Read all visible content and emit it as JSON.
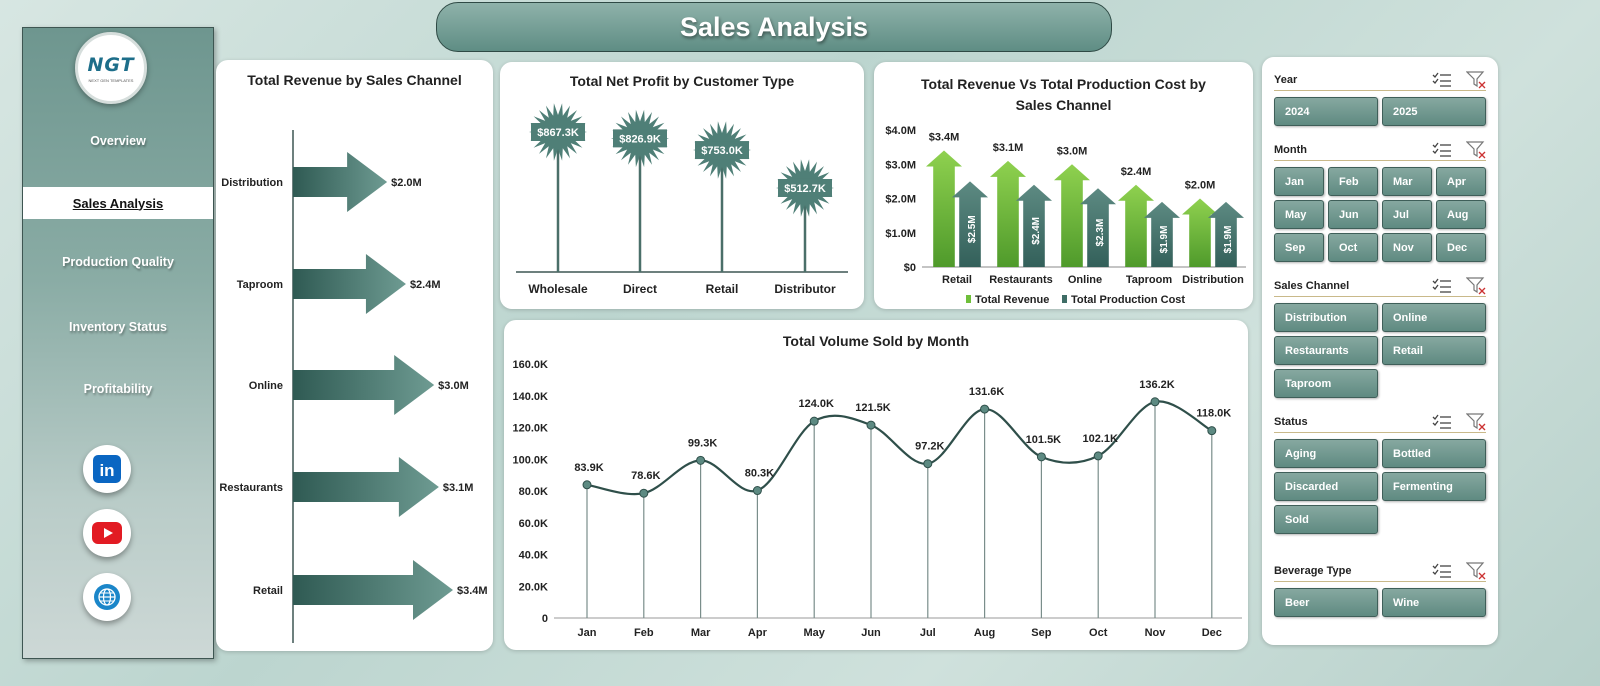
{
  "title": "Sales Analysis",
  "logo": {
    "mark": "NGT",
    "sub": "NEXT GEN TEMPLATES"
  },
  "nav": [
    {
      "label": "Overview"
    },
    {
      "label": "Sales Analysis"
    },
    {
      "label": "Production Quality"
    },
    {
      "label": "Inventory Status"
    },
    {
      "label": "Profitability"
    }
  ],
  "social": [
    {
      "icon": "linkedin-icon",
      "label": "in",
      "color": "#0a66c2"
    },
    {
      "icon": "youtube-icon",
      "label": "▶",
      "color": "#e21b23"
    },
    {
      "icon": "globe-icon",
      "label": "",
      "color": "#1b86c9"
    }
  ],
  "colors": {
    "accent": "#4f7f77",
    "accent_dark": "#3e6a62",
    "revenue_green": "#6fbf3a",
    "cost_teal": "#3f6d66"
  },
  "chart_data": [
    {
      "type": "bar",
      "title": "Total Revenue by Sales Channel",
      "categories": [
        "Distribution",
        "Taproom",
        "Online",
        "Restaurants",
        "Retail"
      ],
      "values": [
        2.0,
        2.4,
        3.0,
        3.1,
        3.4
      ],
      "labels": [
        "$2.0M",
        "$2.4M",
        "$3.0M",
        "$3.1M",
        "$3.4M"
      ],
      "orientation": "horizontal",
      "unit": "$M"
    },
    {
      "type": "bar",
      "title": "Total Net Profit by Customer Type",
      "categories": [
        "Wholesale",
        "Direct",
        "Retail",
        "Distributor"
      ],
      "values": [
        867.3,
        826.9,
        753.0,
        512.7
      ],
      "labels": [
        "$867.3K",
        "$826.9K",
        "$753.0K",
        "$512.7K"
      ],
      "unit": "$K"
    },
    {
      "type": "bar",
      "title": "Total Revenue Vs Total Production Cost by Sales Channel",
      "categories": [
        "Retail",
        "Restaurants",
        "Online",
        "Taproom",
        "Distribution"
      ],
      "series": [
        {
          "name": "Total Revenue",
          "values": [
            3.4,
            3.1,
            3.0,
            2.4,
            2.0
          ],
          "labels": [
            "$3.4M",
            "$3.1M",
            "$3.0M",
            "$2.4M",
            "$2.0M"
          ]
        },
        {
          "name": "Total Production Cost",
          "values": [
            2.5,
            2.4,
            2.3,
            1.9,
            1.9
          ],
          "labels": [
            "$2.5M",
            "$2.4M",
            "$2.3M",
            "$1.9M",
            "$1.9M"
          ]
        }
      ],
      "yticks": [
        "$0",
        "$1.0M",
        "$2.0M",
        "$3.0M",
        "$4.0M"
      ],
      "ylim": [
        0,
        4.0
      ],
      "legend": "bottom"
    },
    {
      "type": "line",
      "title": "Total Volume Sold by Month",
      "x": [
        "Jan",
        "Feb",
        "Mar",
        "Apr",
        "May",
        "Jun",
        "Jul",
        "Aug",
        "Sep",
        "Oct",
        "Nov",
        "Dec"
      ],
      "values": [
        83.9,
        78.6,
        99.3,
        80.3,
        124.0,
        121.5,
        97.2,
        131.6,
        101.5,
        102.1,
        136.2,
        118.0
      ],
      "labels": [
        "83.9K",
        "78.6K",
        "99.3K",
        "80.3K",
        "124.0K",
        "121.5K",
        "97.2K",
        "131.6K",
        "101.5K",
        "102.1K",
        "136.2K",
        "118.0K"
      ],
      "yticks": [
        "0",
        "20.0K",
        "40.0K",
        "60.0K",
        "80.0K",
        "100.0K",
        "120.0K",
        "140.0K",
        "160.0K"
      ],
      "ylim": [
        0,
        160
      ]
    }
  ],
  "filters": [
    {
      "label": "Year",
      "cols": 2,
      "options": [
        "2024",
        "2025"
      ]
    },
    {
      "label": "Month",
      "cols": 4,
      "options": [
        "Jan",
        "Feb",
        "Mar",
        "Apr",
        "May",
        "Jun",
        "Jul",
        "Aug",
        "Sep",
        "Oct",
        "Nov",
        "Dec"
      ]
    },
    {
      "label": "Sales Channel",
      "cols": 2,
      "options": [
        "Distribution",
        "Online",
        "Restaurants",
        "Retail",
        "Taproom"
      ]
    },
    {
      "label": "Status",
      "cols": 2,
      "options": [
        "Aging",
        "Bottled",
        "Discarded",
        "Fermenting",
        "Sold"
      ]
    },
    {
      "label": "Beverage Type",
      "cols": 2,
      "options": [
        "Beer",
        "Wine"
      ]
    }
  ]
}
